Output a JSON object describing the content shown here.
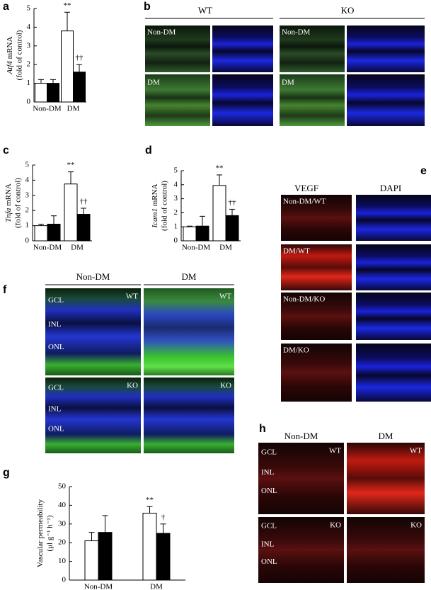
{
  "panel_letters": [
    "a",
    "b",
    "c",
    "d",
    "e",
    "f",
    "g",
    "h"
  ],
  "chart_data": [
    {
      "type": "bar",
      "y_label_gene": "Atf4",
      "y_label_unit": "mRNA",
      "y_label_note": "(fold of control)",
      "categories": [
        "Non-DM",
        "DM"
      ],
      "ylim": [
        0,
        5
      ],
      "yticks": [
        0,
        1,
        2,
        3,
        4,
        5
      ],
      "series": [
        {
          "color": "#ffffff",
          "values": [
            1.0,
            3.8
          ],
          "errors": [
            0.2,
            1.0
          ],
          "annotations": [
            null,
            "**"
          ]
        },
        {
          "color": "#000000",
          "values": [
            1.0,
            1.6
          ],
          "errors": [
            0.2,
            0.4
          ],
          "annotations": [
            null,
            "††"
          ]
        }
      ]
    },
    {
      "type": "bar",
      "y_label_gene": "Tnfa",
      "y_label_unit": "mRNA",
      "y_label_note": "(fold of control)",
      "categories": [
        "Non-DM",
        "DM"
      ],
      "ylim": [
        0,
        5
      ],
      "yticks": [
        0,
        1,
        2,
        3,
        4,
        5
      ],
      "series": [
        {
          "color": "#ffffff",
          "values": [
            1.0,
            3.75
          ],
          "errors": [
            0.1,
            0.8
          ],
          "annotations": [
            null,
            "**"
          ]
        },
        {
          "color": "#000000",
          "values": [
            1.1,
            1.75
          ],
          "errors": [
            0.55,
            0.4
          ],
          "annotations": [
            null,
            "††"
          ]
        }
      ]
    },
    {
      "type": "bar",
      "y_label_gene": "Icam1",
      "y_label_unit": "mRNA",
      "y_label_note": "(fold of control)",
      "categories": [
        "Non-DM",
        "DM"
      ],
      "ylim": [
        0,
        5
      ],
      "yticks": [
        0,
        1,
        2,
        3,
        4,
        5
      ],
      "series": [
        {
          "color": "#ffffff",
          "values": [
            1.0,
            3.95
          ],
          "errors": [
            0.05,
            0.75
          ],
          "annotations": [
            null,
            "**"
          ]
        },
        {
          "color": "#000000",
          "values": [
            1.05,
            1.8
          ],
          "errors": [
            0.7,
            0.45
          ],
          "annotations": [
            null,
            "††"
          ]
        }
      ]
    },
    {
      "type": "bar",
      "y_label_unit": "Vascular permeability",
      "y_label_note": "(μl g⁻¹ h⁻¹)",
      "categories": [
        "Non-DM",
        "DM"
      ],
      "ylim": [
        0,
        50
      ],
      "yticks": [
        0,
        10,
        20,
        30,
        40,
        50
      ],
      "series": [
        {
          "color": "#ffffff",
          "values": [
            21,
            35.8
          ],
          "errors": [
            4.5,
            3.5
          ],
          "annotations": [
            null,
            "**"
          ]
        },
        {
          "color": "#000000",
          "values": [
            25.5,
            25
          ],
          "errors": [
            9,
            5
          ],
          "annotations": [
            null,
            "†"
          ]
        }
      ]
    }
  ],
  "panel_b": {
    "headers": [
      "WT",
      "KO"
    ],
    "labels": [
      "Non-DM",
      "DM",
      "Non-DM",
      "DM"
    ]
  },
  "panel_e": {
    "headers": [
      "VEGF",
      "DAPI"
    ],
    "labels": [
      "Non-DM/WT",
      "DM/WT",
      "Non-DM/KO",
      "DM/KO"
    ]
  },
  "panel_f": {
    "headers": [
      "Non-DM",
      "DM"
    ],
    "layers_top": [
      "GCL",
      "INL",
      "ONL"
    ],
    "layers_bottom": [
      "GCL",
      "INL",
      "ONL"
    ],
    "genotypes": [
      "WT",
      "WT",
      "KO",
      "KO"
    ]
  },
  "panel_h": {
    "headers": [
      "Non-DM",
      "DM"
    ],
    "layers_top": [
      "GCL",
      "INL",
      "ONL"
    ],
    "layers_bottom": [
      "GCL",
      "INL",
      "ONL"
    ],
    "genotypes": [
      "WT",
      "WT",
      "KO",
      "KO"
    ]
  }
}
